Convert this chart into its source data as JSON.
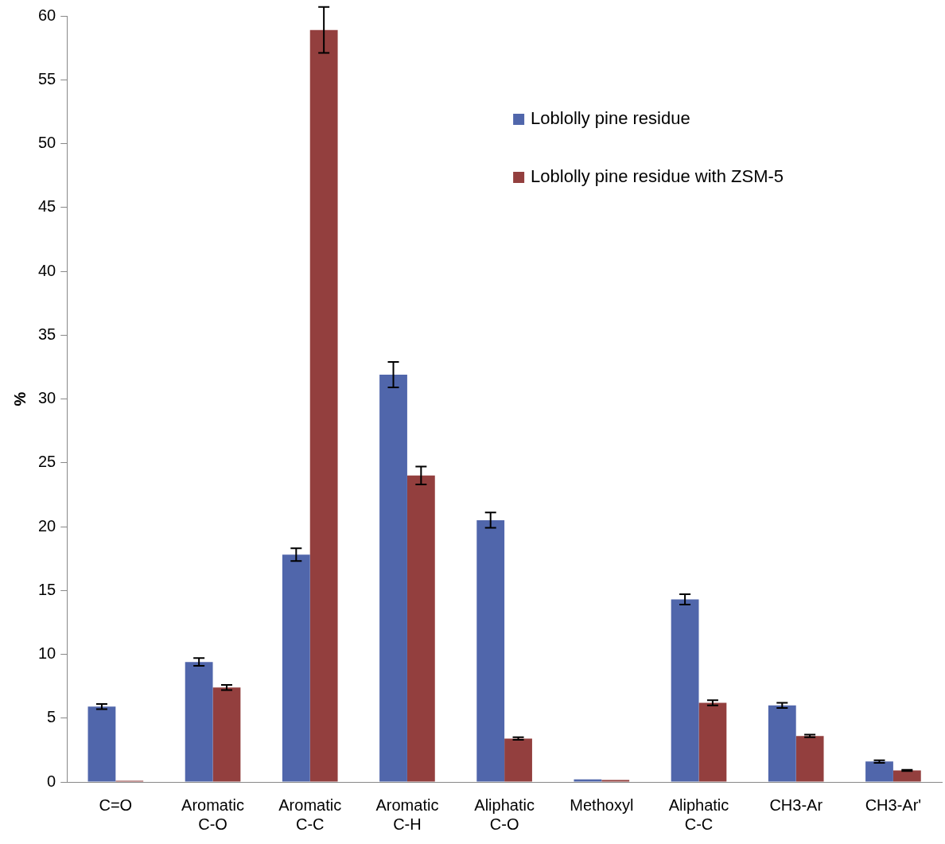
{
  "chart_data": {
    "type": "bar",
    "ylabel": "%",
    "categories": [
      "C=O",
      "Aromatic C-O",
      "Aromatic C-C",
      "Aromatic C-H",
      "Aliphatic C-O",
      "Methoxyl",
      "Aliphatic C-C",
      "CH3-Ar",
      "CH3-Ar'"
    ],
    "series": [
      {
        "name": "Loblolly pine residue",
        "color": "#5066ab",
        "values": [
          5.9,
          9.4,
          17.8,
          31.9,
          20.5,
          0.2,
          14.3,
          6.0,
          1.6
        ],
        "errors": [
          0.2,
          0.3,
          0.5,
          1.0,
          0.6,
          null,
          0.4,
          0.2,
          0.1
        ]
      },
      {
        "name": "Loblolly pine residue with ZSM-5",
        "color": "#933f3e",
        "values": [
          0.1,
          7.4,
          58.9,
          24.0,
          3.4,
          0.15,
          6.2,
          3.6,
          0.9
        ],
        "errors": [
          null,
          0.2,
          1.8,
          0.7,
          0.1,
          null,
          0.2,
          0.1,
          0.05
        ]
      }
    ],
    "ylim": [
      0,
      60
    ],
    "yticks": [
      0,
      5,
      10,
      15,
      20,
      25,
      30,
      35,
      40,
      45,
      50,
      55,
      60
    ],
    "grid": false,
    "legend": "top right"
  }
}
